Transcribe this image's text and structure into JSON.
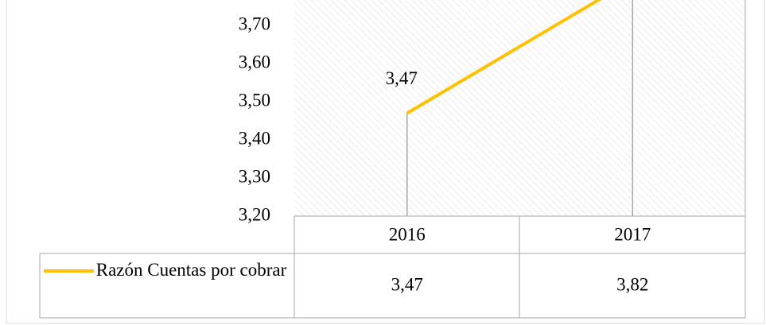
{
  "chart_data": {
    "type": "line",
    "categories": [
      "2016",
      "2017"
    ],
    "series": [
      {
        "name": "Razón Cuentas por cobrar",
        "color": "#ffc000",
        "values": [
          3.47,
          3.82
        ],
        "value_labels": [
          "3,47",
          "3,82"
        ]
      }
    ],
    "ylim": [
      3.2,
      3.767
    ],
    "yticks": [
      {
        "value": 3.2,
        "label": "3,20"
      },
      {
        "value": 3.3,
        "label": "3,30"
      },
      {
        "value": 3.4,
        "label": "3,40"
      },
      {
        "value": 3.5,
        "label": "3,50"
      },
      {
        "value": 3.6,
        "label": "3,60"
      },
      {
        "value": 3.7,
        "label": "3,70"
      }
    ],
    "data_table": true
  }
}
